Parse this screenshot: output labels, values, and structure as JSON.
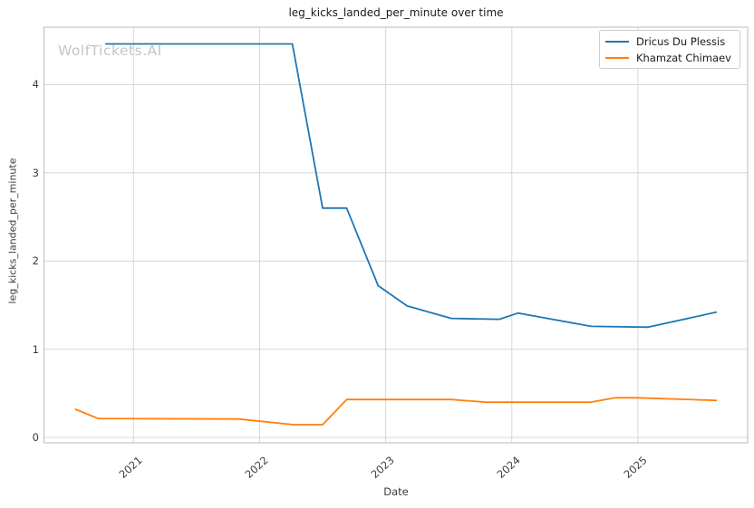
{
  "watermark": "WolfTickets.AI",
  "legend": {
    "items": [
      {
        "label": "Dricus Du Plessis",
        "color": "#1f77b4"
      },
      {
        "label": "Khamzat Chimaev",
        "color": "#ff7f0e"
      }
    ]
  },
  "chart_data": {
    "type": "line",
    "title": "leg_kicks_landed_per_minute over time",
    "xlabel": "Date",
    "ylabel": "leg_kicks_landed_per_minute",
    "x_ticks": [
      2021,
      2022,
      2023,
      2024,
      2025
    ],
    "y_ticks": [
      0,
      1,
      2,
      3,
      4
    ],
    "xlim": [
      2020.29,
      2025.87
    ],
    "ylim": [
      -0.06,
      4.65
    ],
    "grid": true,
    "legend_position": "upper right",
    "colors": {
      "grid": "#d6d6d6",
      "spine": "#c4c4c4"
    },
    "series": [
      {
        "name": "Dricus Du Plessis",
        "color": "#1f77b4",
        "points": [
          [
            2020.78,
            4.46
          ],
          [
            2022.26,
            4.46
          ],
          [
            2022.5,
            2.6
          ],
          [
            2022.69,
            2.6
          ],
          [
            2022.94,
            1.72
          ],
          [
            2023.17,
            1.49
          ],
          [
            2023.52,
            1.35
          ],
          [
            2023.9,
            1.34
          ],
          [
            2024.05,
            1.41
          ],
          [
            2024.63,
            1.26
          ],
          [
            2025.08,
            1.25
          ],
          [
            2025.62,
            1.42
          ]
        ]
      },
      {
        "name": "Khamzat Chimaev",
        "color": "#ff7f0e",
        "points": [
          [
            2020.54,
            0.32
          ],
          [
            2020.72,
            0.215
          ],
          [
            2021.83,
            0.21
          ],
          [
            2022.27,
            0.145
          ],
          [
            2022.5,
            0.145
          ],
          [
            2022.69,
            0.43
          ],
          [
            2023.52,
            0.43
          ],
          [
            2023.8,
            0.4
          ],
          [
            2024.62,
            0.4
          ],
          [
            2024.82,
            0.45
          ],
          [
            2025.0,
            0.45
          ],
          [
            2025.62,
            0.42
          ]
        ]
      }
    ]
  }
}
